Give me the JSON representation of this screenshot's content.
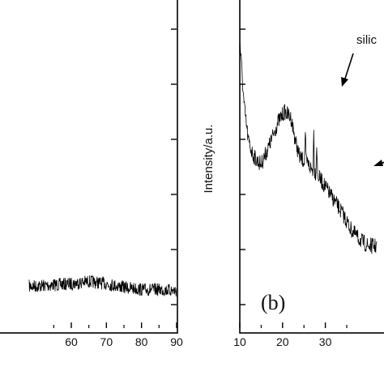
{
  "chart_data": [
    {
      "type": "line",
      "panel": "a",
      "xlim": [
        50,
        90
      ],
      "xticks": [
        60,
        70,
        80,
        90
      ],
      "tick_labels": [
        "60",
        "70",
        "80",
        "90"
      ],
      "grid": false,
      "x_anchor": [
        50,
        55,
        60,
        65,
        70,
        75,
        80,
        85,
        90
      ],
      "y_anchor": [
        0.36,
        0.37,
        0.38,
        0.4,
        0.38,
        0.35,
        0.33,
        0.33,
        0.32
      ]
    },
    {
      "type": "line",
      "panel": "b",
      "ylabel": "Intensity/a.u.",
      "xlim": [
        10,
        40
      ],
      "xticks": [
        10,
        20,
        30
      ],
      "tick_labels": [
        "10",
        "20",
        "30"
      ],
      "grid": false,
      "annotation": "silic",
      "panel_label": "(b)",
      "x_anchor": [
        10,
        10.4,
        11,
        12,
        13,
        14,
        15,
        17,
        19,
        20.5,
        22,
        23,
        24,
        25,
        26,
        27,
        28,
        30,
        32,
        34,
        36,
        38,
        40
      ],
      "y_anchor": [
        0.88,
        0.8,
        0.68,
        0.57,
        0.53,
        0.51,
        0.5,
        0.56,
        0.63,
        0.66,
        0.64,
        0.57,
        0.52,
        0.51,
        0.5,
        0.48,
        0.47,
        0.43,
        0.39,
        0.35,
        0.3,
        0.27,
        0.25
      ],
      "peaks": [
        {
          "x": 25.3,
          "height": 0.09
        },
        {
          "x": 27.3,
          "height": 0.12
        },
        {
          "x": 28.0,
          "height": 0.09
        }
      ]
    }
  ]
}
